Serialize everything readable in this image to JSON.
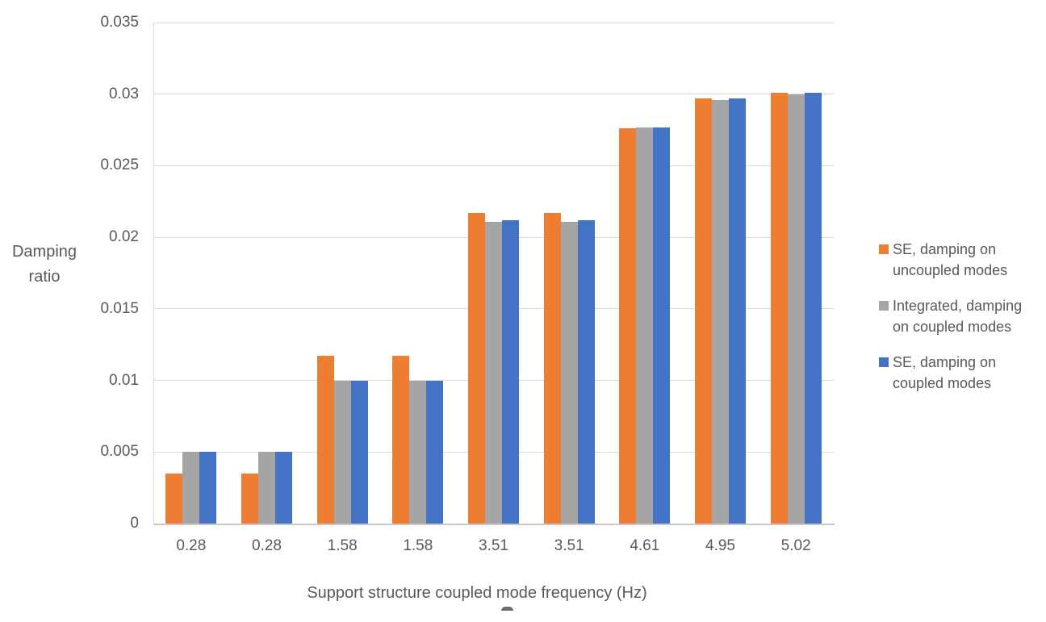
{
  "chart_data": {
    "type": "bar",
    "title": "",
    "xlabel": "Support structure coupled mode frequency (Hz)",
    "ylabel": "Damping ratio",
    "ylabel_lines": [
      "Damping",
      "ratio"
    ],
    "categories": [
      "0.28",
      "0.28",
      "1.58",
      "1.58",
      "3.51",
      "3.51",
      "4.61",
      "4.95",
      "5.02"
    ],
    "series": [
      {
        "name": "SE, damping on uncoupled modes",
        "color": "#ED7D31",
        "values": [
          0.0035,
          0.0035,
          0.0117,
          0.0117,
          0.0217,
          0.0217,
          0.0276,
          0.0297,
          0.0301
        ]
      },
      {
        "name": "Integrated, damping on coupled modes",
        "color": "#A5A5A5",
        "values": [
          0.005,
          0.005,
          0.01,
          0.01,
          0.0211,
          0.0211,
          0.0277,
          0.0296,
          0.03
        ]
      },
      {
        "name": "SE, damping on coupled modes",
        "color": "#4472C4",
        "values": [
          0.005,
          0.005,
          0.01,
          0.01,
          0.0212,
          0.0212,
          0.0277,
          0.0297,
          0.0301
        ]
      }
    ],
    "y_ticks": [
      "0.035",
      "0.03",
      "0.025",
      "0.02",
      "0.015",
      "0.01",
      "0.005",
      "0"
    ],
    "ylim": [
      0,
      0.035
    ],
    "grid": true,
    "legend_position": "right",
    "legend": [
      {
        "color": "#ED7D31",
        "lines": [
          "SE, damping on",
          "uncoupled modes"
        ]
      },
      {
        "color": "#A5A5A5",
        "lines": [
          "Integrated, damping",
          "on coupled modes"
        ]
      },
      {
        "color": "#4472C4",
        "lines": [
          "SE, damping on",
          "coupled modes"
        ]
      }
    ],
    "colors": {
      "text": "#595959",
      "gridline": "#D9D9D9",
      "axis_line": "#C9C9C9",
      "background": "#FFFFFF"
    }
  }
}
